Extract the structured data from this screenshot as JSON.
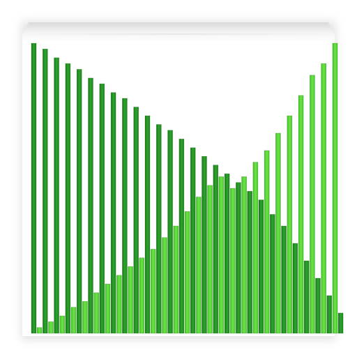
{
  "icon": {
    "name": "equalizer-bars-app-icon",
    "colors": {
      "tile": "#ffffff",
      "dark_green": "#1f8f1f",
      "light_green": "#55d92e"
    }
  },
  "chart_data": {
    "type": "bar",
    "series": [
      {
        "values": [
          100,
          98,
          95,
          93,
          91,
          88,
          86,
          83,
          81,
          78,
          75,
          72,
          70,
          67,
          64,
          61,
          58,
          55,
          52,
          49,
          46,
          41,
          37,
          31,
          25,
          19,
          13,
          7
        ]
      },
      {
        "values": [
          2,
          4,
          6,
          9,
          11,
          14,
          17,
          20,
          23,
          26,
          29,
          33,
          37,
          42,
          47,
          51,
          54,
          50,
          54,
          59,
          63,
          69,
          75,
          82,
          89,
          93,
          100
        ]
      }
    ],
    "ylim": [
      0,
      100
    ],
    "grid": false
  }
}
